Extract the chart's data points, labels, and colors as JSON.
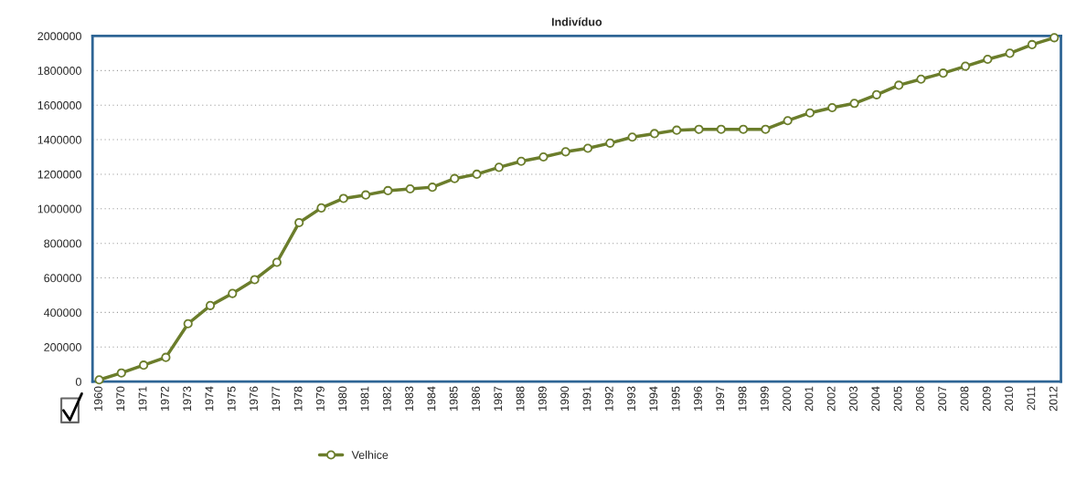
{
  "chart_data": {
    "type": "line",
    "title": "Indivíduo",
    "categories": [
      "1960",
      "1970",
      "1971",
      "1972",
      "1973",
      "1974",
      "1975",
      "1976",
      "1977",
      "1978",
      "1979",
      "1980",
      "1981",
      "1982",
      "1983",
      "1984",
      "1985",
      "1986",
      "1987",
      "1988",
      "1989",
      "1990",
      "1991",
      "1992",
      "1993",
      "1994",
      "1995",
      "1996",
      "1997",
      "1998",
      "1999",
      "2000",
      "2001",
      "2002",
      "2003",
      "2004",
      "2005",
      "2006",
      "2007",
      "2008",
      "2009",
      "2010",
      "2011",
      "2012"
    ],
    "series": [
      {
        "name": "Velhice",
        "color": "#6b7d2b",
        "values": [
          10000,
          50000,
          95000,
          140000,
          335000,
          440000,
          510000,
          590000,
          690000,
          920000,
          1005000,
          1060000,
          1080000,
          1105000,
          1115000,
          1125000,
          1175000,
          1200000,
          1240000,
          1275000,
          1300000,
          1330000,
          1350000,
          1380000,
          1415000,
          1435000,
          1455000,
          1460000,
          1460000,
          1460000,
          1460000,
          1510000,
          1555000,
          1585000,
          1610000,
          1660000,
          1715000,
          1750000,
          1785000,
          1825000,
          1865000,
          1900000,
          1950000,
          1990000
        ]
      }
    ],
    "ylim": [
      0,
      2000000
    ],
    "yticks": [
      0,
      200000,
      400000,
      600000,
      800000,
      1000000,
      1200000,
      1400000,
      1600000,
      1800000,
      2000000
    ],
    "grid": "y",
    "legend": "bottom",
    "marker": "circle",
    "line_style": "solid"
  }
}
